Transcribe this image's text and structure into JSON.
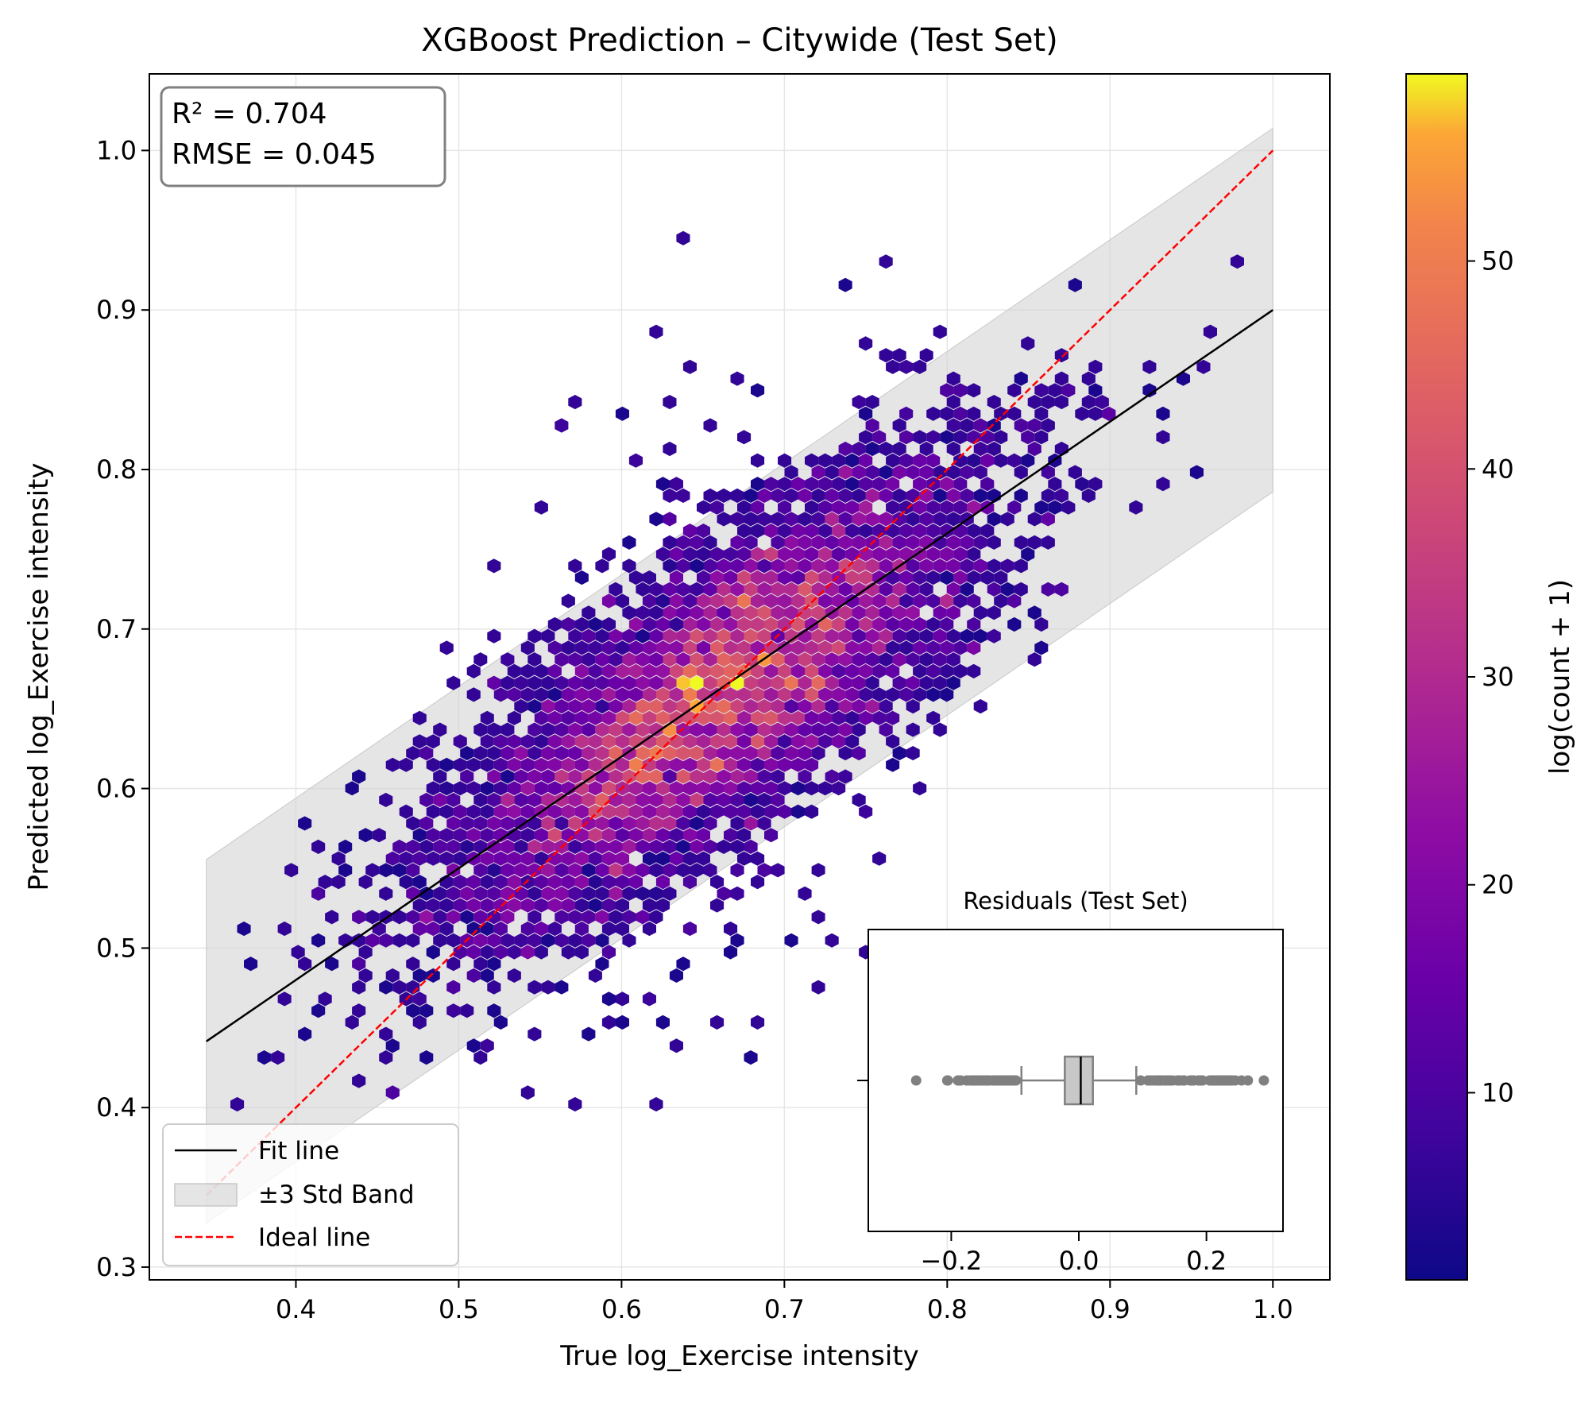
{
  "chart_data": {
    "type": "hexbin",
    "title": "XGBoost Prediction – Citywide (Test Set)",
    "xlabel": "True log_Exercise intensity",
    "ylabel": "Predicted log_Exercise intensity",
    "xlim": [
      0.31,
      1.035
    ],
    "ylim": [
      0.292,
      1.048
    ],
    "xticks": [
      "0.4",
      "0.5",
      "0.6",
      "0.7",
      "0.8",
      "0.9",
      "1.0"
    ],
    "yticks": [
      "0.3",
      "0.4",
      "0.5",
      "0.6",
      "0.7",
      "0.8",
      "0.9",
      "1.0"
    ],
    "grid": true,
    "stats": {
      "r2": "R² = 0.704",
      "rmse": "RMSE = 0.045"
    },
    "fit_line": {
      "slope": 0.7,
      "intercept": 0.2,
      "x_range": [
        0.345,
        1.0
      ]
    },
    "band": {
      "label": "±3 Std Band",
      "half_width": 0.114
    },
    "ideal_line": {
      "x_range": [
        0.345,
        1.0
      ]
    },
    "legend": {
      "location": "lower-left",
      "items": [
        "Fit line",
        "±3 Std Band",
        "Ideal line"
      ]
    },
    "colorbar": {
      "label": "log(count + 1)",
      "range": [
        1,
        59
      ],
      "ticks": [
        "10",
        "20",
        "30",
        "40",
        "50"
      ],
      "colormap": "plasma"
    },
    "inset": {
      "title": "Residuals (Test Set)",
      "type": "boxplot",
      "xlim": [
        -0.33,
        0.32
      ],
      "xticks": [
        "−0.2",
        "0.0",
        "0.2"
      ],
      "box": {
        "q1": -0.022,
        "median": 0.003,
        "q3": 0.022,
        "whisker_low": -0.09,
        "whisker_high": 0.09
      },
      "outlier_range_low": [
        -0.255,
        -0.095
      ],
      "outlier_range_high": [
        0.095,
        0.29
      ]
    }
  },
  "colors": {
    "fit_line": "#000000",
    "ideal_line": "#ff0000",
    "band": "#d3d3d3",
    "box_fill": "#c8c8c8",
    "box_edge": "#808080"
  }
}
